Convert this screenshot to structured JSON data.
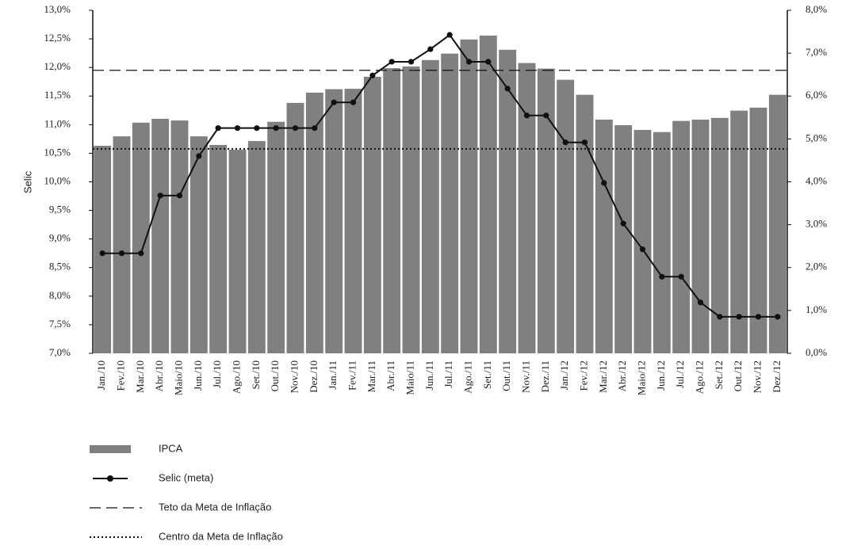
{
  "chart_data": {
    "type": "combo",
    "ylabel": "Selic",
    "categories": [
      "Jan./10",
      "Fev./10",
      "Mar./10",
      "Abr./10",
      "Maio/10",
      "Jun./10",
      "Jul./10",
      "Ago./10",
      "Set./10",
      "Out./10",
      "Nov./10",
      "Dez./10",
      "Jan./11",
      "Fev./11",
      "Mar./11",
      "Abr./11",
      "Maio/11",
      "Jun./11",
      "Jul./11",
      "Ago./11",
      "Set./11",
      "Out./11",
      "Nov./11",
      "Dez./11",
      "Jan./12",
      "Fev./12",
      "Mar./12",
      "Abr./12",
      "Maio/12",
      "Jun./12",
      "Jul./12",
      "Ago./12",
      "Set./12",
      "Out./12",
      "Nov./12",
      "Dez./12"
    ],
    "ylim": [
      7.0,
      13.0
    ],
    "yticks": [
      {
        "value": 7.0,
        "label": "7,0%"
      },
      {
        "value": 7.5,
        "label": "7,5%"
      },
      {
        "value": 8.0,
        "label": "8,0%"
      },
      {
        "value": 8.5,
        "label": "8,5%"
      },
      {
        "value": 9.0,
        "label": "9,0%"
      },
      {
        "value": 9.5,
        "label": "9,5%"
      },
      {
        "value": 10.0,
        "label": "10,0%"
      },
      {
        "value": 10.5,
        "label": "10,5%"
      },
      {
        "value": 11.0,
        "label": "11,0%"
      },
      {
        "value": 11.5,
        "label": "11,5%"
      },
      {
        "value": 12.0,
        "label": "12,0%"
      },
      {
        "value": 12.5,
        "label": "12,5%"
      },
      {
        "value": 13.0,
        "label": "13,0%"
      }
    ],
    "y2lim": [
      0,
      8
    ],
    "y2ticks": [
      {
        "value": 0,
        "label": "0,0%"
      },
      {
        "value": 1,
        "label": "1,0%"
      },
      {
        "value": 2,
        "label": "2,0%"
      },
      {
        "value": 3,
        "label": "3,0%"
      },
      {
        "value": 4,
        "label": "4,0%"
      },
      {
        "value": 5,
        "label": "5,0%"
      },
      {
        "value": 6,
        "label": "6,0%"
      },
      {
        "value": 7,
        "label": "7,0%"
      },
      {
        "value": 8,
        "label": "8,0%"
      }
    ],
    "series": [
      {
        "name": "IPCA",
        "type": "bar",
        "axis": "y2",
        "color": "#808080",
        "values": [
          4.84,
          5.06,
          5.38,
          5.47,
          5.43,
          5.06,
          4.86,
          4.75,
          4.95,
          5.4,
          5.84,
          6.08,
          6.16,
          6.17,
          6.45,
          6.65,
          6.69,
          6.84,
          6.99,
          7.32,
          7.41,
          7.08,
          6.77,
          6.64,
          6.38,
          6.03,
          5.45,
          5.32,
          5.21,
          5.16,
          5.42,
          5.45,
          5.49,
          5.66,
          5.73,
          6.03
        ]
      },
      {
        "name": "Selic (meta)",
        "type": "line",
        "color": "#111111",
        "values": [
          8.75,
          8.75,
          8.75,
          9.76,
          9.76,
          10.45,
          10.94,
          10.94,
          10.94,
          10.94,
          10.94,
          10.94,
          11.39,
          11.39,
          11.86,
          12.1,
          12.1,
          12.32,
          12.57,
          12.1,
          12.1,
          11.63,
          11.16,
          11.16,
          10.69,
          10.69,
          9.98,
          9.27,
          8.82,
          8.34,
          8.34,
          7.89,
          7.64,
          7.64,
          7.64,
          7.64
        ]
      }
    ],
    "reference_lines": [
      {
        "name": "Teto da Meta de Inflação",
        "axis": "y2",
        "value": 6.6,
        "style": "dashed",
        "color": "#111111"
      },
      {
        "name": "Centro da Meta de Inflação",
        "axis": "y2",
        "value": 4.77,
        "style": "dotted",
        "color": "#111111"
      }
    ]
  }
}
